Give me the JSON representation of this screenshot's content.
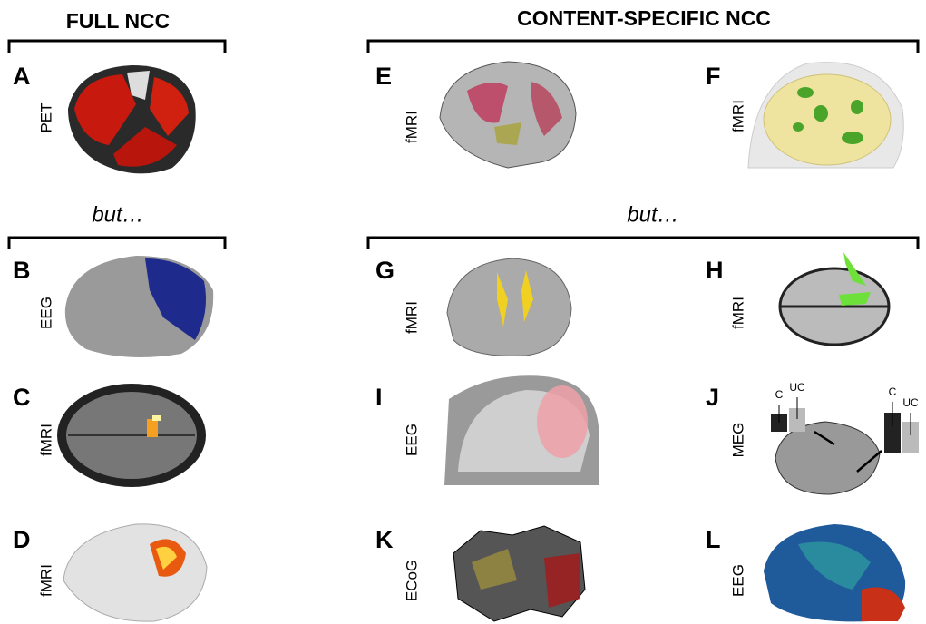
{
  "headers": {
    "left": "FULL NCC",
    "right": "CONTENT-SPECIFIC NCC"
  },
  "but_labels": [
    "but…",
    "but…"
  ],
  "panels": [
    {
      "letter": "A",
      "modality": "PET"
    },
    {
      "letter": "E",
      "modality": "fMRI"
    },
    {
      "letter": "F",
      "modality": "fMRI"
    },
    {
      "letter": "B",
      "modality": "EEG"
    },
    {
      "letter": "G",
      "modality": "fMRI"
    },
    {
      "letter": "H",
      "modality": "fMRI"
    },
    {
      "letter": "C",
      "modality": "fMRI"
    },
    {
      "letter": "I",
      "modality": "EEG"
    },
    {
      "letter": "J",
      "modality": "MEG"
    },
    {
      "letter": "D",
      "modality": "fMRI"
    },
    {
      "letter": "K",
      "modality": "ECoG"
    },
    {
      "letter": "L",
      "modality": "EEG"
    }
  ],
  "panel_j_bar_labels": [
    "C",
    "UC",
    "C",
    "UC"
  ]
}
